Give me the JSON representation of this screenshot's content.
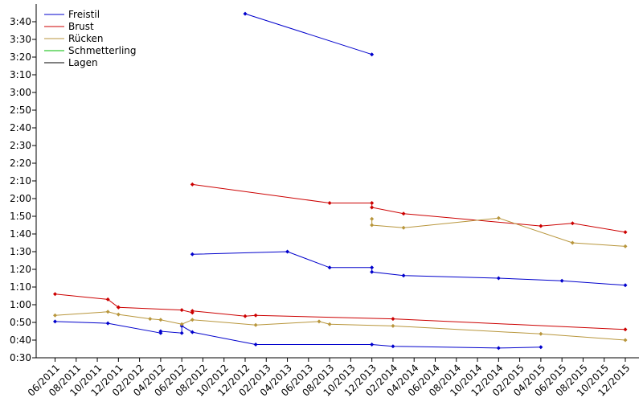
{
  "chart_data": {
    "type": "line",
    "title": "",
    "xlabel": "",
    "ylabel": "",
    "x_unit": "month",
    "x_range": [
      "2011-06",
      "2015-12"
    ],
    "x_tick_labels": [
      "06/2011",
      "08/2011",
      "10/2011",
      "12/2011",
      "02/2012",
      "04/2012",
      "06/2012",
      "08/2012",
      "10/2012",
      "12/2012",
      "02/2013",
      "04/2013",
      "06/2013",
      "08/2013",
      "10/2013",
      "12/2013",
      "02/2014",
      "04/2014",
      "06/2014",
      "08/2014",
      "10/2014",
      "12/2014",
      "02/2015",
      "04/2015",
      "06/2015",
      "08/2015",
      "10/2015",
      "12/2015"
    ],
    "y_unit": "seconds",
    "ylim": [
      30,
      230
    ],
    "y_tick_labels": [
      "0:30",
      "0:40",
      "0:50",
      "1:00",
      "1:10",
      "1:20",
      "1:30",
      "1:40",
      "1:50",
      "2:00",
      "2:10",
      "2:20",
      "2:30",
      "2:40",
      "2:50",
      "3:00",
      "3:10",
      "3:20",
      "3:30",
      "3:40"
    ],
    "grid": false,
    "legend_position": "top-left",
    "series": [
      {
        "name": "Freistil",
        "color": "#0000cc",
        "segments": [
          [
            [
              "2011-06",
              50.5
            ],
            [
              "2011-11",
              49.5
            ],
            [
              "2012-04",
              44
            ],
            [
              "2012-04",
              45
            ],
            [
              "2012-06",
              44
            ],
            [
              "2012-06",
              48
            ],
            [
              "2012-07",
              44.5
            ],
            [
              "2013-01",
              37.5
            ],
            [
              "2013-12",
              37.5
            ],
            [
              "2014-02",
              36.5
            ],
            [
              "2014-12",
              35.5
            ],
            [
              "2015-04",
              36
            ]
          ],
          [
            [
              "2012-07",
              88.5
            ],
            [
              "2013-04",
              90
            ],
            [
              "2013-08",
              81
            ],
            [
              "2013-12",
              81
            ],
            [
              "2013-12",
              78.5
            ],
            [
              "2014-03",
              76.5
            ],
            [
              "2014-12",
              75
            ],
            [
              "2015-06",
              73.5
            ],
            [
              "2015-12",
              71
            ]
          ],
          [
            [
              "2012-12",
              224.5
            ],
            [
              "2013-12",
              201.5
            ]
          ]
        ]
      },
      {
        "name": "Brust",
        "color": "#cc0000",
        "segments": [
          [
            [
              "2011-06",
              66
            ],
            [
              "2011-11",
              63
            ],
            [
              "2011-12",
              58.5
            ],
            [
              "2011-12",
              58.5
            ],
            [
              "2012-06",
              57
            ],
            [
              "2012-07",
              55.5
            ],
            [
              "2012-07",
              56.5
            ],
            [
              "2012-12",
              53.5
            ],
            [
              "2013-01",
              54
            ],
            [
              "2014-02",
              52
            ],
            [
              "2015-12",
              46
            ]
          ],
          [
            [
              "2012-07",
              128
            ],
            [
              "2013-08",
              117.5
            ],
            [
              "2013-12",
              117.5
            ],
            [
              "2013-12",
              115
            ],
            [
              "2014-03",
              111.5
            ],
            [
              "2015-04",
              104.5
            ],
            [
              "2015-07",
              106
            ],
            [
              "2015-12",
              101
            ]
          ]
        ]
      },
      {
        "name": "Rücken",
        "color": "#b8963c",
        "segments": [
          [
            [
              "2011-06",
              54
            ],
            [
              "2011-11",
              56
            ],
            [
              "2011-12",
              54.5
            ],
            [
              "2012-03",
              52
            ],
            [
              "2012-04",
              51.5
            ],
            [
              "2012-06",
              49
            ],
            [
              "2012-07",
              51.5
            ],
            [
              "2013-01",
              48.5
            ],
            [
              "2013-07",
              50.5
            ],
            [
              "2013-08",
              49
            ],
            [
              "2014-02",
              48
            ],
            [
              "2015-04",
              43.5
            ],
            [
              "2015-12",
              40
            ]
          ],
          [
            [
              "2013-12",
              108.5
            ],
            [
              "2013-12",
              105
            ],
            [
              "2014-03",
              103.5
            ],
            [
              "2014-12",
              109
            ],
            [
              "2015-07",
              95
            ],
            [
              "2015-12",
              93
            ]
          ]
        ]
      },
      {
        "name": "Schmetterling",
        "color": "#00bb00",
        "segments": []
      },
      {
        "name": "Lagen",
        "color": "#000000",
        "segments": []
      }
    ]
  }
}
